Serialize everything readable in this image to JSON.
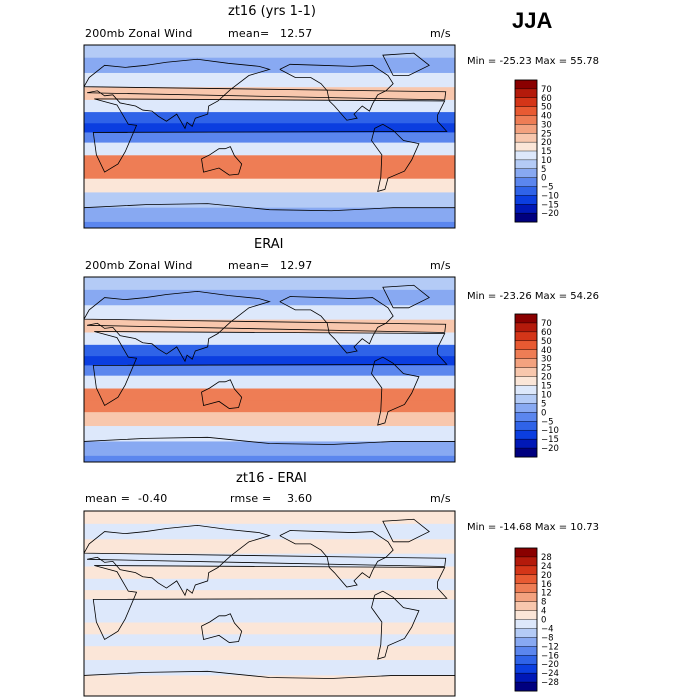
{
  "season": "JJA",
  "units": "m/s",
  "colors": {
    "scale": [
      "#00007f",
      "#0018b7",
      "#0b3ee0",
      "#2f63e8",
      "#5b86ee",
      "#88a9f2",
      "#b4cbf6",
      "#dde8fb",
      "#fbe6d8",
      "#f8c7ad",
      "#f3a27f",
      "#ee7d55",
      "#e85a32",
      "#d43518",
      "#b41a0b",
      "#8a0000"
    ],
    "diff_scale": [
      "#00007f",
      "#0018b7",
      "#0b3ee0",
      "#2f63e8",
      "#5b86ee",
      "#88a9f2",
      "#b4cbf6",
      "#dde8fb",
      "#fbe6d8",
      "#f8c7ad",
      "#f3a27f",
      "#ee7d55",
      "#e85a32",
      "#d43518",
      "#b41a0b",
      "#8a0000"
    ]
  },
  "chart_data": [
    {
      "type": "heatmap",
      "title": "zt16 (yrs 1-1)",
      "variable": "200mb Zonal Wind",
      "stat1_label": "mean=",
      "stat1_value": "12.57",
      "units": "m/s",
      "min_max_text": "Min = -25.23 Max =  55.78",
      "min": -25.23,
      "max": 55.78,
      "levels": [
        -20,
        -15,
        -10,
        -5,
        0,
        5,
        10,
        15,
        20,
        25,
        30,
        40,
        50,
        60,
        70
      ],
      "level_labels": [
        "70",
        "60",
        "50",
        "40",
        "30",
        "25",
        "20",
        "15",
        "10",
        "5",
        "0",
        "−5",
        "−10",
        "−15",
        "−20"
      ],
      "bands": [
        {
          "lat": 85,
          "value": 8
        },
        {
          "lat": 70,
          "value": 3
        },
        {
          "lat": 55,
          "value": 12
        },
        {
          "lat": 42,
          "value": 22
        },
        {
          "lat": 30,
          "value": 12
        },
        {
          "lat": 18,
          "value": -8
        },
        {
          "lat": 8,
          "value": -15
        },
        {
          "lat": 0,
          "value": -5
        },
        {
          "lat": -12,
          "value": 12
        },
        {
          "lat": -25,
          "value": 38
        },
        {
          "lat": -35,
          "value": 32
        },
        {
          "lat": -48,
          "value": 18
        },
        {
          "lat": -62,
          "value": 8
        },
        {
          "lat": -78,
          "value": 2
        },
        {
          "lat": -90,
          "value": -3
        }
      ]
    },
    {
      "type": "heatmap",
      "title": "ERAI",
      "variable": "200mb Zonal Wind",
      "stat1_label": "mean=",
      "stat1_value": "12.97",
      "units": "m/s",
      "min_max_text": "Min = -23.26 Max =  54.26",
      "min": -23.26,
      "max": 54.26,
      "levels": [
        -20,
        -15,
        -10,
        -5,
        0,
        5,
        10,
        15,
        20,
        25,
        30,
        40,
        50,
        60,
        70
      ],
      "level_labels": [
        "70",
        "60",
        "50",
        "40",
        "30",
        "25",
        "20",
        "15",
        "10",
        "5",
        "0",
        "−5",
        "−10",
        "−15",
        "−20"
      ],
      "bands": [
        {
          "lat": 85,
          "value": 6
        },
        {
          "lat": 70,
          "value": 4
        },
        {
          "lat": 55,
          "value": 14
        },
        {
          "lat": 42,
          "value": 24
        },
        {
          "lat": 30,
          "value": 10
        },
        {
          "lat": 18,
          "value": -7
        },
        {
          "lat": 8,
          "value": -14
        },
        {
          "lat": 0,
          "value": -4
        },
        {
          "lat": -12,
          "value": 14
        },
        {
          "lat": -25,
          "value": 38
        },
        {
          "lat": -35,
          "value": 33
        },
        {
          "lat": -48,
          "value": 20
        },
        {
          "lat": -62,
          "value": 10
        },
        {
          "lat": -78,
          "value": 3
        },
        {
          "lat": -90,
          "value": -2
        }
      ]
    },
    {
      "type": "heatmap",
      "title": "zt16 - ERAI",
      "variable": "",
      "stat1_label": "mean =",
      "stat1_value": "-0.40",
      "stat2_label": "rmse =",
      "stat2_value": "3.60",
      "units": "m/s",
      "min_max_text": "Min = -14.68 Max =  10.73",
      "min": -14.68,
      "max": 10.73,
      "levels": [
        -28,
        -24,
        -20,
        -16,
        -12,
        -8,
        -4,
        0,
        4,
        8,
        12,
        16,
        20,
        24,
        28
      ],
      "level_labels": [
        "28",
        "24",
        "20",
        "16",
        "12",
        "8",
        "4",
        "0",
        "−4",
        "−8",
        "−12",
        "−16",
        "−20",
        "−24",
        "−28"
      ],
      "bands": [
        {
          "lat": 85,
          "value": 1
        },
        {
          "lat": 70,
          "value": -1
        },
        {
          "lat": 55,
          "value": 2
        },
        {
          "lat": 42,
          "value": -2
        },
        {
          "lat": 30,
          "value": 3
        },
        {
          "lat": 18,
          "value": -3
        },
        {
          "lat": 8,
          "value": 1
        },
        {
          "lat": 0,
          "value": -2
        },
        {
          "lat": -12,
          "value": -3
        },
        {
          "lat": -25,
          "value": 2
        },
        {
          "lat": -35,
          "value": -2
        },
        {
          "lat": -48,
          "value": 2
        },
        {
          "lat": -62,
          "value": -1
        },
        {
          "lat": -78,
          "value": 1
        },
        {
          "lat": -90,
          "value": 0
        }
      ]
    }
  ]
}
